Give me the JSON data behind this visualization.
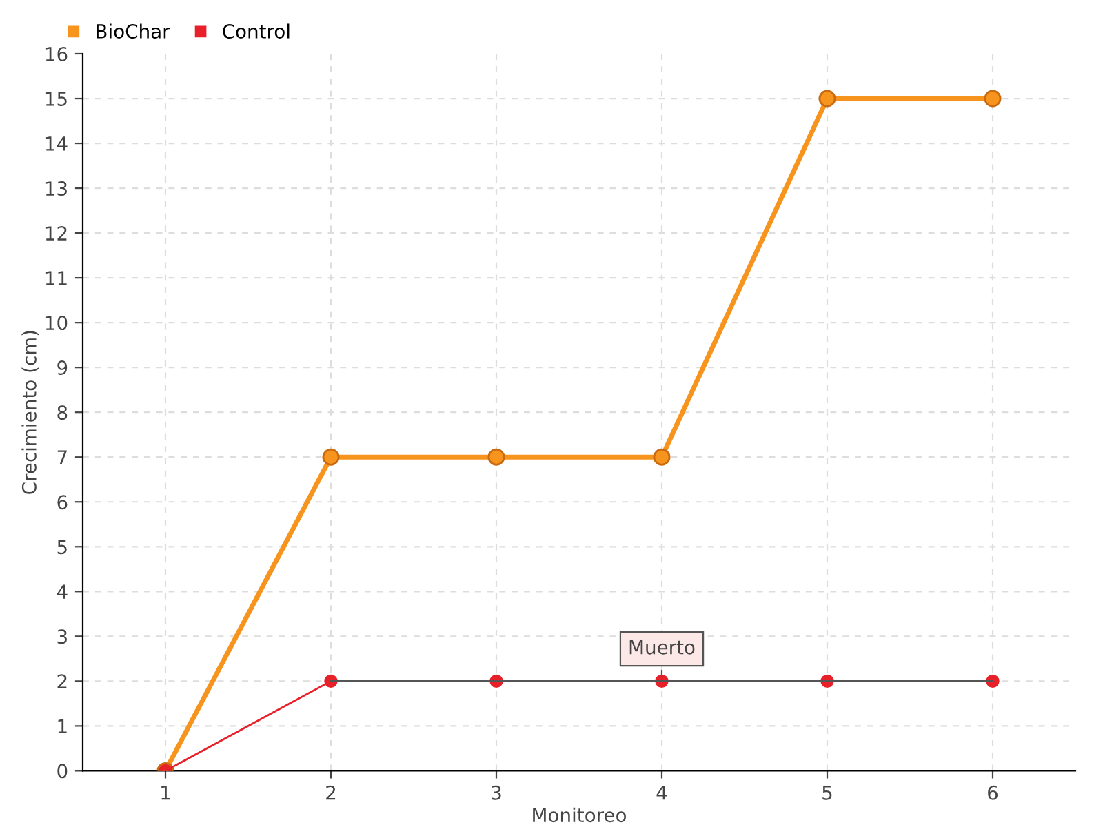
{
  "chart_data": {
    "type": "line",
    "xlabel": "Monitoreo",
    "ylabel": "Crecimiento (cm)",
    "x": [
      1,
      2,
      3,
      4,
      5,
      6
    ],
    "series": [
      {
        "name": "BioChar",
        "color": "#f7941d",
        "values": [
          0,
          7,
          7,
          7,
          15,
          15
        ]
      },
      {
        "name": "Control",
        "color": "#e8202a",
        "values": [
          0,
          2,
          2,
          2,
          2,
          2
        ]
      },
      {
        "color": "#555555",
        "marker": "none",
        "values": [
          null,
          2,
          2,
          2,
          2,
          2
        ]
      }
    ],
    "xlim": [
      0.5,
      6.5
    ],
    "xticks": [
      1,
      2,
      3,
      4,
      5,
      6
    ],
    "ylim": [
      0,
      16
    ],
    "yticks": [
      0,
      1,
      2,
      3,
      4,
      5,
      6,
      7,
      8,
      9,
      10,
      11,
      12,
      13,
      14,
      15,
      16
    ],
    "annotations": [
      {
        "text": "Muerto",
        "x": 4,
        "y": 2
      }
    ],
    "grid": true,
    "legend": "top left",
    "marker": "circle",
    "line_style": "solid"
  }
}
